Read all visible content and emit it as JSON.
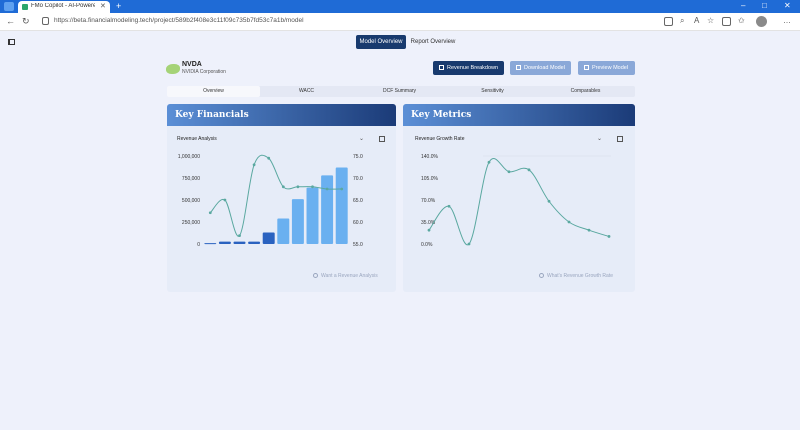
{
  "browser": {
    "tab_title": "FMo Copilot - AI-Powered Finan",
    "url": "https://beta.financialmodeling.tech/project/589b2f408e3c11f09c735b7fd53c7a1b/model"
  },
  "app": {
    "view_tabs": [
      "Model Overview",
      "Report Overview"
    ],
    "ticker": "NVDA",
    "company": "NVIDIA Corporation",
    "buttons": {
      "revenue_breakdown": "Revenue Breakdown",
      "download_model": "Download Model",
      "preview_model": "Preview Model"
    },
    "sub_tabs": [
      "Overview",
      "WACC",
      "DCF Summary",
      "Sensitivity",
      "Comparables"
    ],
    "key_financials": {
      "title": "Key Financials",
      "select_value": "Revenue Analysis",
      "hint": "Want a Revenue Analysis"
    },
    "key_metrics": {
      "title": "Key Metrics",
      "select_value": "Revenue Growth Rate",
      "hint": "What's Revenue Growth Rate"
    },
    "colors": {
      "primary": "#183a6e",
      "bar": "#6ab0f0",
      "bar_dark": "#2a62c0",
      "line": "#5aa8a0"
    }
  },
  "chart_data": [
    {
      "type": "bar",
      "left_axis_ticks": [
        "1,000,000",
        "750,000",
        "500,000",
        "250,000",
        "0"
      ],
      "right_axis_ticks": [
        "75.0",
        "70.0",
        "65.0",
        "60.0",
        "55.0"
      ],
      "ylim_left": [
        0,
        1000000
      ],
      "ylim_right": [
        55,
        75
      ],
      "bars": [
        10000,
        27000,
        27000,
        27000,
        130000,
        290000,
        510000,
        640000,
        780000,
        870000
      ],
      "bar_style": [
        "dark",
        "dark",
        "dark",
        "dark",
        "dark",
        "light",
        "light",
        "light",
        "light",
        "light"
      ],
      "line": [
        62.1,
        65.0,
        56.9,
        73.0,
        74.5,
        68.0,
        68.0,
        68.0,
        67.5,
        67.5
      ]
    },
    {
      "type": "line",
      "y_axis_ticks": [
        "140.0%",
        "105.0%",
        "70.0%",
        "35.0%",
        "0.0%"
      ],
      "ylim": [
        0,
        140
      ],
      "values": [
        22.0,
        60.0,
        0.0,
        130.0,
        115.0,
        118.0,
        68.0,
        35.0,
        22.0,
        12.0
      ]
    }
  ]
}
